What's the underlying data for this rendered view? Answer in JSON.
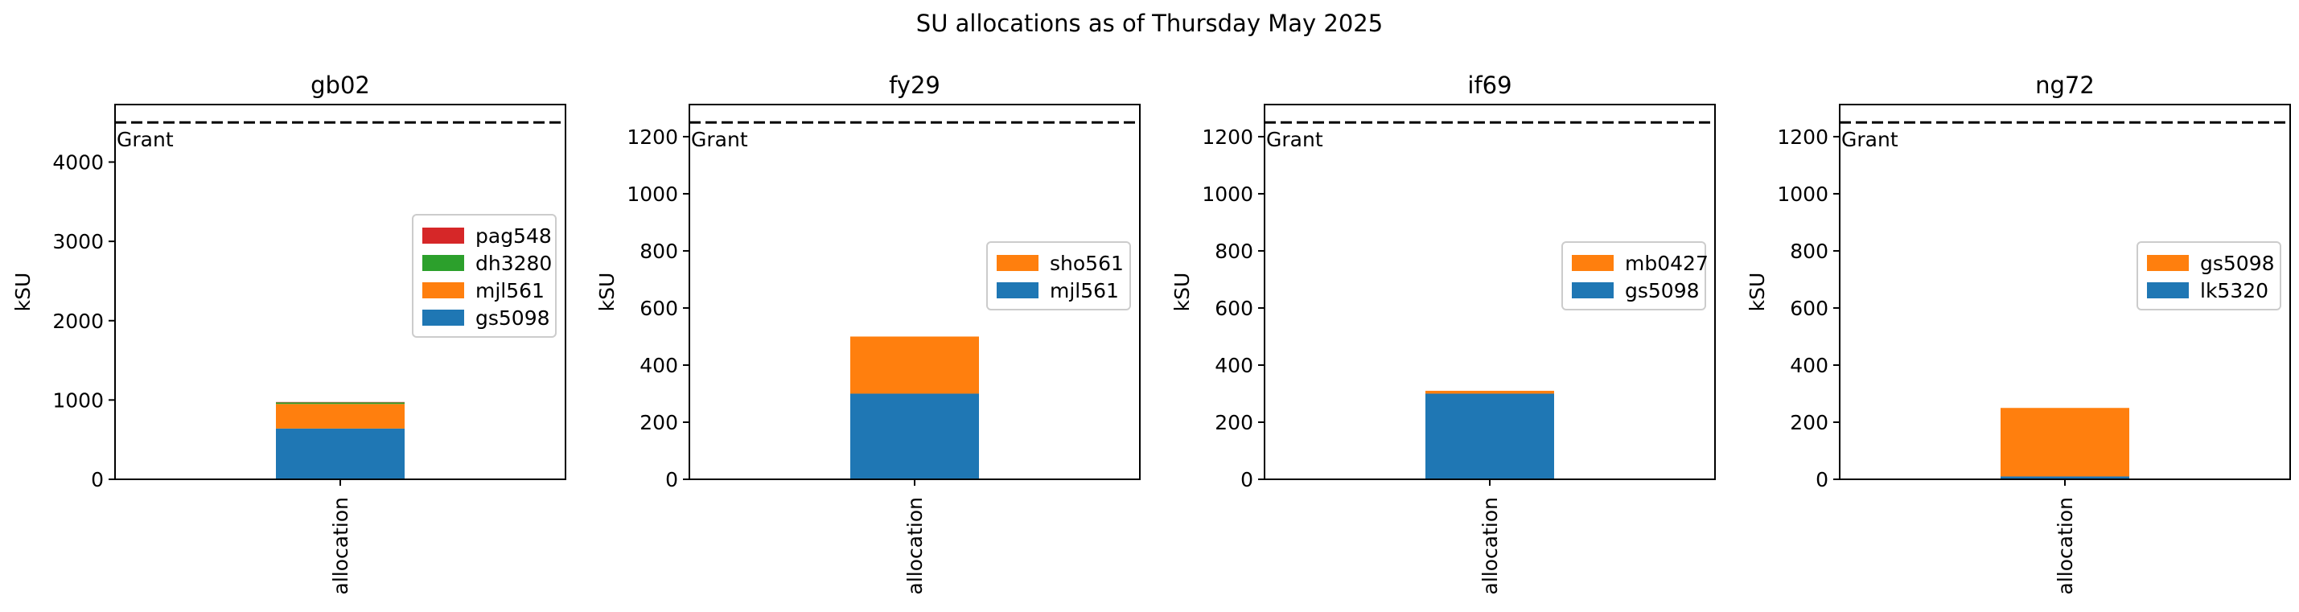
{
  "suptitle": "SU allocations as of Thursday May 2025",
  "chart_data": [
    {
      "type": "bar",
      "stacked": true,
      "title": "gb02",
      "categories": [
        "allocation"
      ],
      "ylabel": "kSU",
      "ylim": [
        0,
        4725
      ],
      "yticks": [
        0,
        1000,
        2000,
        3000,
        4000
      ],
      "grant": 4500,
      "grant_label": "Grant",
      "legend_position": "center-right",
      "series": [
        {
          "name": "gs5098",
          "values": [
            640
          ],
          "color": "#1f77b4"
        },
        {
          "name": "mjl561",
          "values": [
            310
          ],
          "color": "#ff7f0e"
        },
        {
          "name": "dh3280",
          "values": [
            20
          ],
          "color": "#2ca02c"
        },
        {
          "name": "pag548",
          "values": [
            5
          ],
          "color": "#d62728"
        }
      ]
    },
    {
      "type": "bar",
      "stacked": true,
      "title": "fy29",
      "categories": [
        "allocation"
      ],
      "ylabel": "kSU",
      "ylim": [
        0,
        1312.5
      ],
      "yticks": [
        0,
        200,
        400,
        600,
        800,
        1000,
        1200
      ],
      "grant": 1250,
      "grant_label": "Grant",
      "legend_position": "center-right",
      "series": [
        {
          "name": "mjl561",
          "values": [
            300
          ],
          "color": "#1f77b4"
        },
        {
          "name": "sho561",
          "values": [
            200
          ],
          "color": "#ff7f0e"
        }
      ]
    },
    {
      "type": "bar",
      "stacked": true,
      "title": "if69",
      "categories": [
        "allocation"
      ],
      "ylabel": "kSU",
      "ylim": [
        0,
        1312.5
      ],
      "yticks": [
        0,
        200,
        400,
        600,
        800,
        1000,
        1200
      ],
      "grant": 1250,
      "grant_label": "Grant",
      "legend_position": "center-right",
      "series": [
        {
          "name": "gs5098",
          "values": [
            300
          ],
          "color": "#1f77b4"
        },
        {
          "name": "mb0427",
          "values": [
            10
          ],
          "color": "#ff7f0e"
        }
      ]
    },
    {
      "type": "bar",
      "stacked": true,
      "title": "ng72",
      "categories": [
        "allocation"
      ],
      "ylabel": "kSU",
      "ylim": [
        0,
        1312.5
      ],
      "yticks": [
        0,
        200,
        400,
        600,
        800,
        1000,
        1200
      ],
      "grant": 1250,
      "grant_label": "Grant",
      "legend_position": "center-right",
      "series": [
        {
          "name": "lk5320",
          "values": [
            10
          ],
          "color": "#1f77b4"
        },
        {
          "name": "gs5098",
          "values": [
            240
          ],
          "color": "#ff7f0e"
        }
      ]
    }
  ]
}
